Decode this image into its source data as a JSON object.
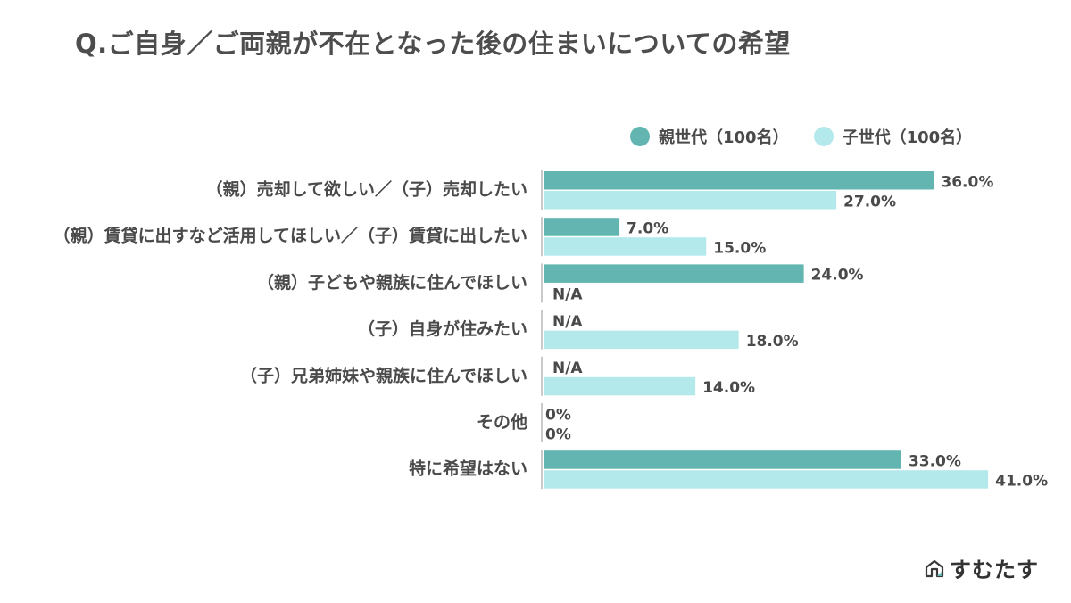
{
  "title": "Q.ご自身／ご両親が不在となった後の住まいについての希望",
  "brand": {
    "name": "すむたす",
    "icon": "house-logo-icon"
  },
  "colors": {
    "parent": "#62b5b1",
    "child": "#b4e9ec",
    "axis": "#c9c9c9",
    "text": "#4a4a4a"
  },
  "legend": [
    {
      "label": "親世代（100名）",
      "color": "#62b5b1"
    },
    {
      "label": "子世代（100名）",
      "color": "#b4e9ec"
    }
  ],
  "chart_data": {
    "type": "bar",
    "orientation": "horizontal",
    "title": "Q.ご自身／ご両親が不在となった後の住まいについての希望",
    "unit": "%",
    "categories": [
      "（親）売却して欲しい／（子）売却したい",
      "（親）賃貸に出すなど活用してほしい／（子）賃貸に出したい",
      "（親）子どもや親族に住んでほしい",
      "（子）自身が住みたい",
      "（子）兄弟姉妹や親族に住んでほしい",
      "その他",
      "特に希望はない"
    ],
    "series": [
      {
        "name": "親世代（100名）",
        "values": [
          36.0,
          7.0,
          24.0,
          null,
          null,
          0,
          33.0
        ],
        "labels": [
          "36.0%",
          "7.0%",
          "24.0%",
          "N/A",
          "N/A",
          "0%",
          "33.0%"
        ]
      },
      {
        "name": "子世代（100名）",
        "values": [
          27.0,
          15.0,
          null,
          18.0,
          14.0,
          0,
          41.0
        ],
        "labels": [
          "27.0%",
          "15.0%",
          "N/A",
          "18.0%",
          "14.0%",
          "0%",
          "41.0%"
        ]
      }
    ],
    "xlim": [
      0,
      41
    ],
    "legend_position": "top-right",
    "grid": false
  }
}
